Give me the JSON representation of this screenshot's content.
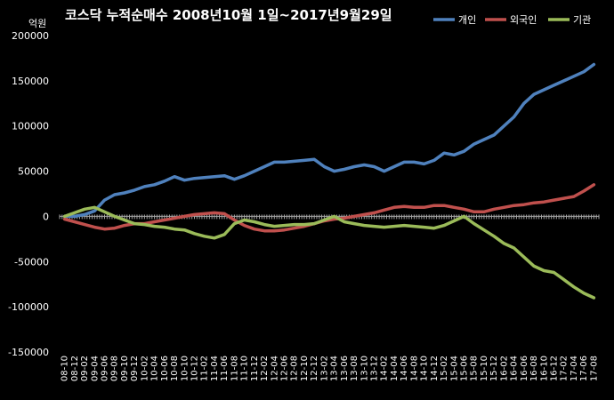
{
  "chart_data": {
    "type": "line",
    "title": "코스닥 누적순매수 2008년10월 1일~2017년9월29일",
    "unit_label": "억원",
    "ylim": [
      -150000,
      200000
    ],
    "yticks": [
      200000,
      150000,
      100000,
      50000,
      0,
      -50000,
      -100000,
      -150000
    ],
    "ytick_labels": [
      "200000",
      "150000",
      "100000",
      "50000",
      "0",
      "-50000",
      "-100000",
      "-150000"
    ],
    "categories": [
      "08-10",
      "08-12",
      "09-02",
      "09-04",
      "09-06",
      "09-08",
      "09-10",
      "09-12",
      "10-02",
      "10-04",
      "10-06",
      "10-08",
      "10-10",
      "10-12",
      "11-02",
      "11-04",
      "11-06",
      "11-08",
      "11-10",
      "11-12",
      "12-02",
      "12-04",
      "12-06",
      "12-08",
      "12-10",
      "12-12",
      "13-02",
      "13-04",
      "13-06",
      "13-08",
      "13-10",
      "13-12",
      "14-02",
      "14-04",
      "14-06",
      "14-08",
      "14-10",
      "14-12",
      "15-02",
      "15-04",
      "15-06",
      "15-08",
      "15-10",
      "15-12",
      "16-02",
      "16-04",
      "16-06",
      "16-08",
      "16-10",
      "16-12",
      "17-02",
      "17-04",
      "17-06",
      "17-08"
    ],
    "legend_position": "top-right",
    "grid": false,
    "series": [
      {
        "name": "개인",
        "color": "#4f81bd",
        "values": [
          0,
          0,
          2000,
          6000,
          18000,
          24000,
          26000,
          29000,
          33000,
          35000,
          39000,
          44000,
          40000,
          42000,
          43000,
          44000,
          45000,
          41000,
          45000,
          50000,
          55000,
          60000,
          60000,
          61000,
          62000,
          63000,
          55000,
          50000,
          52000,
          55000,
          57000,
          55000,
          50000,
          55000,
          60000,
          60000,
          58000,
          62000,
          70000,
          68000,
          72000,
          80000,
          85000,
          90000,
          100000,
          110000,
          125000,
          135000,
          140000,
          145000,
          150000,
          155000,
          160000,
          168000
        ]
      },
      {
        "name": "외국인",
        "color": "#c0504d",
        "values": [
          -3000,
          -6000,
          -9000,
          -12000,
          -14000,
          -13000,
          -10000,
          -8000,
          -8000,
          -6000,
          -4000,
          -2000,
          0,
          2000,
          3000,
          4000,
          3000,
          -4000,
          -10000,
          -14000,
          -16000,
          -16000,
          -15000,
          -13000,
          -11000,
          -8000,
          -5000,
          -3000,
          -2000,
          0,
          2000,
          4000,
          7000,
          10000,
          11000,
          10000,
          10000,
          12000,
          12000,
          10000,
          8000,
          5000,
          5000,
          8000,
          10000,
          12000,
          13000,
          15000,
          16000,
          18000,
          20000,
          22000,
          28000,
          35000
        ]
      },
      {
        "name": "기관",
        "color": "#9bbb59",
        "values": [
          0,
          4000,
          8000,
          10000,
          5000,
          0,
          -4000,
          -8000,
          -9000,
          -11000,
          -12000,
          -14000,
          -15000,
          -19000,
          -22000,
          -24000,
          -20000,
          -8000,
          -4000,
          -6000,
          -9000,
          -11000,
          -10000,
          -9000,
          -9000,
          -8000,
          -4000,
          0,
          -6000,
          -8000,
          -10000,
          -11000,
          -12000,
          -11000,
          -10000,
          -11000,
          -12000,
          -13000,
          -10000,
          -5000,
          0,
          -8000,
          -15000,
          -22000,
          -30000,
          -35000,
          -45000,
          -55000,
          -60000,
          -62000,
          -70000,
          -78000,
          -85000,
          -90000
        ]
      }
    ]
  }
}
